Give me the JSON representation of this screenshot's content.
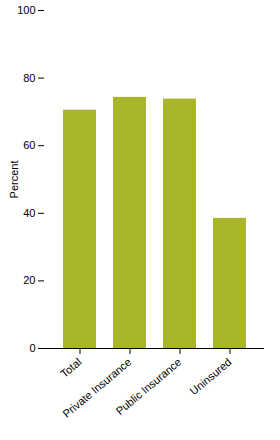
{
  "chart_data": {
    "type": "bar",
    "categories": [
      "Total",
      "Private Insurance",
      "Public Insurance",
      "Uninsured"
    ],
    "values": [
      70.5,
      74.3,
      73.8,
      38.5
    ],
    "color": "#a9b52b",
    "y_label": "Percent",
    "ylim": [
      0,
      100
    ],
    "yticks": [
      0,
      20,
      40,
      60,
      80,
      100
    ],
    "grid": false
  }
}
